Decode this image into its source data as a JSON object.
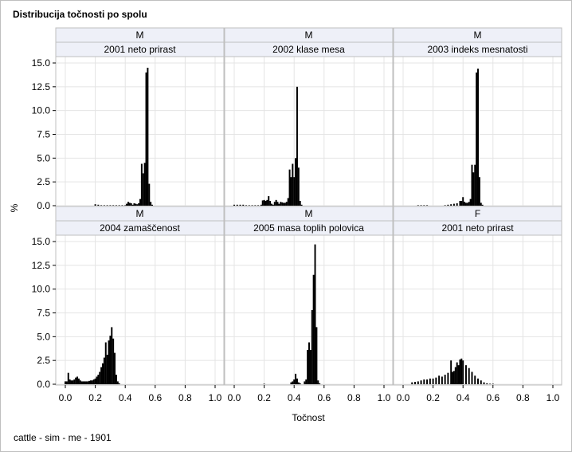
{
  "figure": {
    "title": "Distribucija točnosti po spolu",
    "footnote": "cattle - sim - me - 1901",
    "xlabel": "Točnost",
    "ylabel": "%"
  },
  "colors": {
    "bars": "#000000",
    "header_fill": "#eef0f8",
    "grid": "#e4e4e4",
    "frame": "#bfbfbf"
  },
  "chart_data": {
    "type": "bar",
    "subtype": "histogram-panel-grid",
    "xlim": [
      0.0,
      1.0
    ],
    "ylim": [
      0,
      15.0
    ],
    "xticks": [
      "0.0",
      "0.2",
      "0.4",
      "0.6",
      "0.8",
      "1.0"
    ],
    "yticks": [
      "0.0",
      "2.5",
      "5.0",
      "7.5",
      "10.0",
      "12.5",
      "15.0"
    ],
    "grid": true,
    "panels": [
      {
        "sex": "M",
        "trait": "2001 neto prirast",
        "bins": [
          [
            0.2,
            0.15
          ],
          [
            0.22,
            0.1
          ],
          [
            0.24,
            0.05
          ],
          [
            0.26,
            0.05
          ],
          [
            0.28,
            0.05
          ],
          [
            0.3,
            0.05
          ],
          [
            0.32,
            0.05
          ],
          [
            0.34,
            0.05
          ],
          [
            0.36,
            0.05
          ],
          [
            0.38,
            0.05
          ],
          [
            0.4,
            0.05
          ],
          [
            0.41,
            0.2
          ],
          [
            0.42,
            0.4
          ],
          [
            0.43,
            0.3
          ],
          [
            0.44,
            0.25
          ],
          [
            0.45,
            0.1
          ],
          [
            0.46,
            0.25
          ],
          [
            0.47,
            0.2
          ],
          [
            0.48,
            0.15
          ],
          [
            0.49,
            0.25
          ],
          [
            0.5,
            0.7
          ],
          [
            0.51,
            4.4
          ],
          [
            0.52,
            3.4
          ],
          [
            0.53,
            4.5
          ],
          [
            0.54,
            14.0
          ],
          [
            0.55,
            14.5
          ],
          [
            0.56,
            2.3
          ],
          [
            0.57,
            0.4
          ],
          [
            0.58,
            0.1
          ]
        ]
      },
      {
        "sex": "M",
        "trait": "2002 klase mesa",
        "bins": [
          [
            0.0,
            0.1
          ],
          [
            0.02,
            0.1
          ],
          [
            0.04,
            0.1
          ],
          [
            0.06,
            0.1
          ],
          [
            0.08,
            0.05
          ],
          [
            0.1,
            0.05
          ],
          [
            0.12,
            0.05
          ],
          [
            0.14,
            0.05
          ],
          [
            0.16,
            0.05
          ],
          [
            0.18,
            0.1
          ],
          [
            0.19,
            0.55
          ],
          [
            0.2,
            0.6
          ],
          [
            0.21,
            0.5
          ],
          [
            0.22,
            0.6
          ],
          [
            0.23,
            1.0
          ],
          [
            0.24,
            0.5
          ],
          [
            0.25,
            0.2
          ],
          [
            0.26,
            0.1
          ],
          [
            0.27,
            0.4
          ],
          [
            0.28,
            0.6
          ],
          [
            0.29,
            0.4
          ],
          [
            0.3,
            0.2
          ],
          [
            0.31,
            0.4
          ],
          [
            0.32,
            0.35
          ],
          [
            0.33,
            0.3
          ],
          [
            0.34,
            0.3
          ],
          [
            0.35,
            0.4
          ],
          [
            0.36,
            0.8
          ],
          [
            0.37,
            3.8
          ],
          [
            0.38,
            3.0
          ],
          [
            0.39,
            4.4
          ],
          [
            0.4,
            3.0
          ],
          [
            0.41,
            5.0
          ],
          [
            0.42,
            12.5
          ],
          [
            0.43,
            4.0
          ],
          [
            0.44,
            0.5
          ],
          [
            0.45,
            0.1
          ]
        ]
      },
      {
        "sex": "M",
        "trait": "2003 indeks mesnatosti",
        "bins": [
          [
            0.1,
            0.05
          ],
          [
            0.12,
            0.05
          ],
          [
            0.14,
            0.05
          ],
          [
            0.16,
            0.05
          ],
          [
            0.28,
            0.05
          ],
          [
            0.3,
            0.1
          ],
          [
            0.32,
            0.15
          ],
          [
            0.34,
            0.2
          ],
          [
            0.36,
            0.25
          ],
          [
            0.38,
            0.5
          ],
          [
            0.39,
            0.5
          ],
          [
            0.4,
            0.9
          ],
          [
            0.41,
            0.4
          ],
          [
            0.42,
            0.3
          ],
          [
            0.43,
            0.3
          ],
          [
            0.44,
            0.4
          ],
          [
            0.45,
            0.7
          ],
          [
            0.46,
            4.3
          ],
          [
            0.47,
            3.5
          ],
          [
            0.48,
            4.3
          ],
          [
            0.49,
            14.0
          ],
          [
            0.5,
            14.4
          ],
          [
            0.51,
            3.0
          ],
          [
            0.52,
            0.3
          ],
          [
            0.53,
            0.1
          ]
        ]
      },
      {
        "sex": "M",
        "trait": "2004 zamaščenost",
        "bins": [
          [
            0.0,
            0.3
          ],
          [
            0.01,
            0.3
          ],
          [
            0.02,
            1.2
          ],
          [
            0.03,
            0.5
          ],
          [
            0.04,
            0.4
          ],
          [
            0.05,
            0.4
          ],
          [
            0.06,
            0.5
          ],
          [
            0.07,
            0.7
          ],
          [
            0.08,
            0.8
          ],
          [
            0.09,
            0.6
          ],
          [
            0.1,
            0.4
          ],
          [
            0.11,
            0.3
          ],
          [
            0.12,
            0.3
          ],
          [
            0.13,
            0.3
          ],
          [
            0.14,
            0.3
          ],
          [
            0.15,
            0.3
          ],
          [
            0.16,
            0.35
          ],
          [
            0.17,
            0.4
          ],
          [
            0.18,
            0.4
          ],
          [
            0.19,
            0.5
          ],
          [
            0.2,
            0.6
          ],
          [
            0.21,
            0.8
          ],
          [
            0.22,
            1.0
          ],
          [
            0.23,
            1.3
          ],
          [
            0.24,
            1.8
          ],
          [
            0.25,
            2.2
          ],
          [
            0.26,
            2.8
          ],
          [
            0.27,
            4.4
          ],
          [
            0.28,
            3.1
          ],
          [
            0.29,
            4.6
          ],
          [
            0.3,
            5.1
          ],
          [
            0.31,
            6.0
          ],
          [
            0.32,
            4.8
          ],
          [
            0.33,
            3.3
          ],
          [
            0.34,
            1.0
          ],
          [
            0.35,
            0.3
          ],
          [
            0.36,
            0.1
          ]
        ]
      },
      {
        "sex": "M",
        "trait": "2005 masa toplih polovica",
        "bins": [
          [
            0.2,
            0.05
          ],
          [
            0.38,
            0.2
          ],
          [
            0.39,
            0.3
          ],
          [
            0.4,
            0.5
          ],
          [
            0.41,
            1.1
          ],
          [
            0.42,
            0.6
          ],
          [
            0.43,
            0.2
          ],
          [
            0.44,
            0.1
          ],
          [
            0.47,
            0.3
          ],
          [
            0.48,
            0.5
          ],
          [
            0.49,
            3.6
          ],
          [
            0.5,
            4.4
          ],
          [
            0.51,
            3.6
          ],
          [
            0.52,
            7.8
          ],
          [
            0.53,
            11.5
          ],
          [
            0.54,
            14.7
          ],
          [
            0.55,
            6.0
          ],
          [
            0.56,
            0.4
          ],
          [
            0.57,
            0.1
          ]
        ]
      },
      {
        "sex": "F",
        "trait": "2001 neto prirast",
        "bins": [
          [
            0.06,
            0.2
          ],
          [
            0.08,
            0.25
          ],
          [
            0.1,
            0.3
          ],
          [
            0.12,
            0.4
          ],
          [
            0.14,
            0.5
          ],
          [
            0.16,
            0.5
          ],
          [
            0.18,
            0.6
          ],
          [
            0.2,
            0.6
          ],
          [
            0.22,
            0.7
          ],
          [
            0.24,
            0.9
          ],
          [
            0.26,
            0.8
          ],
          [
            0.28,
            1.0
          ],
          [
            0.3,
            1.2
          ],
          [
            0.32,
            2.5
          ],
          [
            0.33,
            1.3
          ],
          [
            0.34,
            1.4
          ],
          [
            0.35,
            1.8
          ],
          [
            0.36,
            2.3
          ],
          [
            0.37,
            2.0
          ],
          [
            0.38,
            2.6
          ],
          [
            0.39,
            2.7
          ],
          [
            0.4,
            2.5
          ],
          [
            0.42,
            2.0
          ],
          [
            0.44,
            1.7
          ],
          [
            0.46,
            1.3
          ],
          [
            0.48,
            0.9
          ],
          [
            0.5,
            0.6
          ],
          [
            0.52,
            0.4
          ],
          [
            0.54,
            0.2
          ],
          [
            0.56,
            0.1
          ],
          [
            0.58,
            0.05
          ],
          [
            0.6,
            0.05
          ]
        ]
      }
    ]
  }
}
